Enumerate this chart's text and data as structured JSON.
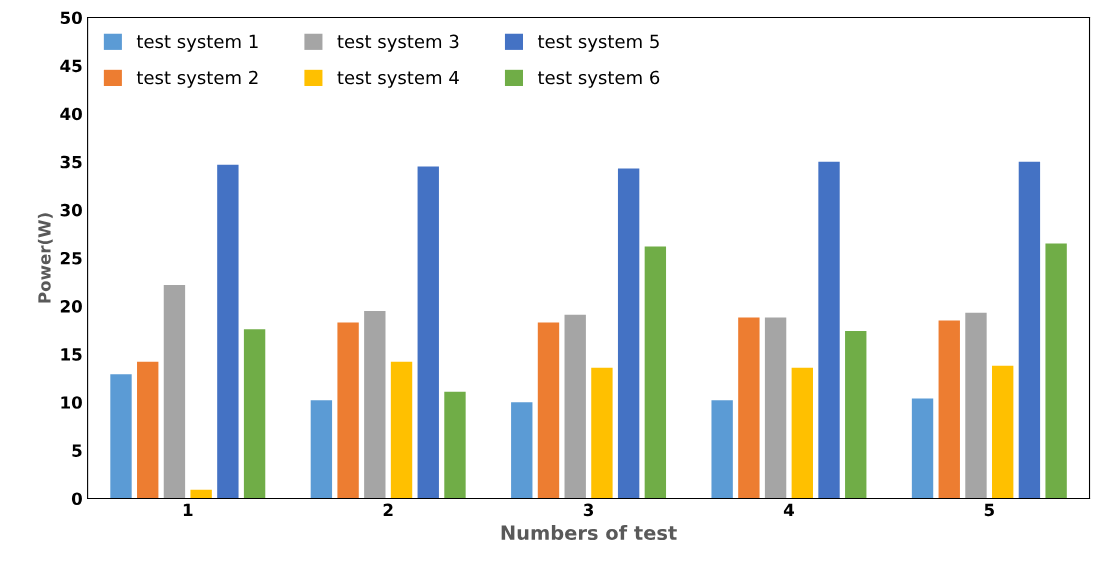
{
  "chart_data": {
    "type": "bar",
    "xlabel": "Numbers of test",
    "ylabel": "Power(W)",
    "categories": [
      "1",
      "2",
      "3",
      "4",
      "5"
    ],
    "series": [
      {
        "name": "test system 1",
        "color": "#5b9bd5",
        "values": [
          12.9,
          10.2,
          10.0,
          10.2,
          10.4
        ]
      },
      {
        "name": "test system 2",
        "color": "#ed7d31",
        "values": [
          14.2,
          18.3,
          18.3,
          18.8,
          18.5
        ]
      },
      {
        "name": "test system 3",
        "color": "#a5a5a5",
        "values": [
          22.2,
          19.5,
          19.1,
          18.8,
          19.3
        ]
      },
      {
        "name": "test system 4",
        "color": "#ffc000",
        "values": [
          0.9,
          14.2,
          13.6,
          13.6,
          13.8
        ]
      },
      {
        "name": "test system 5",
        "color": "#4472c4",
        "values": [
          34.7,
          34.5,
          34.3,
          35.0,
          35.0
        ]
      },
      {
        "name": "test system 6",
        "color": "#70ad47",
        "values": [
          17.6,
          11.1,
          26.2,
          17.4,
          26.5
        ]
      }
    ],
    "ylim": [
      0,
      50
    ],
    "yticks": [
      0,
      5,
      10,
      15,
      20,
      25,
      30,
      35,
      40,
      45,
      50
    ],
    "grid": false,
    "legend": "top left"
  }
}
